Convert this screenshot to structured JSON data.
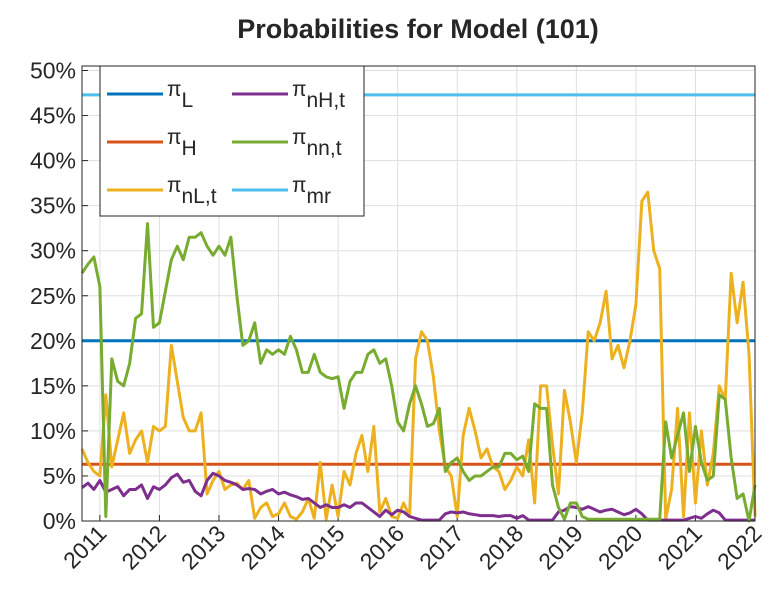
{
  "chart_data": {
    "type": "line",
    "title": "Probabilities for Model (101)",
    "x": [
      2010.7,
      2010.8,
      2010.9,
      2011.0,
      2011.1,
      2011.2,
      2011.3,
      2011.4,
      2011.5,
      2011.6,
      2011.7,
      2011.8,
      2011.9,
      2012.0,
      2012.1,
      2012.2,
      2012.3,
      2012.4,
      2012.5,
      2012.6,
      2012.7,
      2012.8,
      2012.9,
      2013.0,
      2013.1,
      2013.2,
      2013.3,
      2013.4,
      2013.5,
      2013.6,
      2013.7,
      2013.8,
      2013.9,
      2014.0,
      2014.1,
      2014.2,
      2014.3,
      2014.4,
      2014.5,
      2014.6,
      2014.7,
      2014.8,
      2014.9,
      2015.0,
      2015.1,
      2015.2,
      2015.3,
      2015.4,
      2015.5,
      2015.6,
      2015.7,
      2015.8,
      2015.9,
      2016.0,
      2016.1,
      2016.2,
      2016.3,
      2016.4,
      2016.5,
      2016.6,
      2016.7,
      2016.8,
      2016.9,
      2017.0,
      2017.1,
      2017.2,
      2017.3,
      2017.4,
      2017.5,
      2017.6,
      2017.7,
      2017.8,
      2017.9,
      2018.0,
      2018.1,
      2018.2,
      2018.3,
      2018.4,
      2018.5,
      2018.6,
      2018.7,
      2018.8,
      2018.9,
      2019.0,
      2019.1,
      2019.2,
      2019.3,
      2019.4,
      2019.5,
      2019.6,
      2019.7,
      2019.8,
      2019.9,
      2020.0,
      2020.1,
      2020.2,
      2020.3,
      2020.4,
      2020.5,
      2020.6,
      2020.7,
      2020.8,
      2020.9,
      2021.0,
      2021.1,
      2021.2,
      2021.3,
      2021.4,
      2021.5,
      2021.6,
      2021.7,
      2021.8,
      2021.9,
      2022.0
    ],
    "series": [
      {
        "name": "πL",
        "color": "#0072bd",
        "x": [
          2010.7,
          2022.0
        ],
        "values": [
          20,
          20
        ]
      },
      {
        "name": "πH",
        "color": "#d95319",
        "x": [
          2010.7,
          2022.0
        ],
        "values": [
          6.3,
          6.3
        ]
      },
      {
        "name": "πnL,t",
        "color": "#edb120",
        "values": [
          8,
          6.5,
          5.5,
          5,
          14,
          6,
          9,
          12,
          7.5,
          9,
          10,
          6.5,
          10.5,
          10,
          10.5,
          19.5,
          15.5,
          11.5,
          10,
          10,
          12,
          3,
          4.5,
          5.5,
          3.5,
          4,
          4.2,
          3.5,
          4.5,
          0.3,
          1.5,
          2,
          0.5,
          0.8,
          2,
          0.5,
          0.2,
          1,
          2.5,
          0.3,
          6.5,
          0.2,
          4,
          0.5,
          5.5,
          4,
          7.5,
          9.5,
          5.5,
          10.5,
          1,
          2.5,
          0.5,
          0.3,
          2,
          0.5,
          18,
          21,
          20,
          16,
          10,
          6,
          5,
          0.5,
          9.5,
          12.5,
          10,
          7,
          8,
          6,
          5.5,
          3.5,
          4.5,
          6,
          5,
          9,
          2,
          15,
          15,
          8.5,
          3,
          14.5,
          11,
          6.5,
          12,
          21,
          20,
          22,
          25.5,
          18,
          19.5,
          17,
          20,
          24,
          35.5,
          36.5,
          30,
          28,
          0.2,
          3.5,
          12.5,
          0.5,
          12,
          2,
          10,
          4,
          7.5,
          15,
          13.5,
          27.5,
          22,
          26.5,
          18.5,
          0.5
        ]
      },
      {
        "name": "πnH,t",
        "color": "#7e2f8e",
        "values": [
          3.7,
          4.2,
          3.5,
          4.5,
          3.2,
          3.5,
          3.8,
          2.8,
          3.5,
          3.5,
          4,
          2.5,
          3.8,
          3.5,
          4,
          4.8,
          5.2,
          4.3,
          4.5,
          3.3,
          2.8,
          4.5,
          5.3,
          5,
          4.5,
          4.3,
          4,
          3.5,
          3.6,
          3.5,
          3,
          3.3,
          3.5,
          3,
          3.2,
          2.9,
          2.7,
          2.4,
          2.5,
          2,
          1.5,
          1.8,
          1.5,
          1.5,
          1.8,
          1.5,
          2,
          2,
          1.5,
          1,
          0.5,
          1.2,
          0.7,
          1.2,
          1,
          0.5,
          0.3,
          0.1,
          0.1,
          0.1,
          0.1,
          0.8,
          1,
          0.9,
          1,
          0.8,
          0.7,
          0.6,
          0.6,
          0.6,
          0.5,
          0.6,
          0.6,
          0.3,
          0.6,
          0.1,
          0.1,
          0.1,
          0.1,
          0.1,
          1,
          1.2,
          1.6,
          1.5,
          1.3,
          1.6,
          1.3,
          1,
          1.2,
          1.3,
          1,
          0.7,
          0.9,
          1.3,
          0.8,
          0.1,
          0.1,
          0.1,
          0.1,
          0.1,
          0.1,
          0.1,
          0.3,
          0.5,
          0.3,
          0.8,
          1.2,
          0.9,
          0.1,
          0.1,
          0.1,
          0.1,
          0.1,
          0.1
        ]
      },
      {
        "name": "πnn,t",
        "color": "#77ac30",
        "values": [
          27.5,
          28.5,
          29.3,
          26,
          0.5,
          18,
          15.5,
          15,
          17.5,
          22.5,
          23,
          33,
          21.5,
          22,
          25.5,
          29,
          30.5,
          29,
          31.5,
          31.5,
          32,
          30.5,
          29.5,
          30.5,
          29.5,
          31.5,
          25,
          19.5,
          20,
          22,
          17.5,
          19,
          18.5,
          19,
          18.5,
          20.5,
          19,
          16.5,
          16.5,
          18.5,
          16.5,
          16,
          15.8,
          16,
          12.5,
          15.5,
          16.5,
          16.5,
          18.5,
          19,
          17.5,
          18,
          15,
          11,
          10,
          13,
          15,
          13,
          10.5,
          10.8,
          12.5,
          5.5,
          6.5,
          7,
          5.5,
          4.5,
          5,
          5,
          5.5,
          6,
          6,
          7.5,
          7.5,
          6.8,
          7.2,
          5.5,
          13,
          12.5,
          12.5,
          4,
          1.5,
          0.2,
          2,
          2,
          0.5,
          0.2,
          0.2,
          0.2,
          0.2,
          0.2,
          0.2,
          0.2,
          0.2,
          0.2,
          0.2,
          0.2,
          0.2,
          0.2,
          11,
          7,
          9.5,
          12,
          5.5,
          10.5,
          6.5,
          4.5,
          5,
          14,
          13.5,
          7,
          2.5,
          3,
          0,
          4
        ]
      },
      {
        "name": "πmr",
        "color": "#4dbeee",
        "x": [
          2010.7,
          2022.0
        ],
        "values": [
          47.3,
          47.3
        ]
      }
    ],
    "xlim": [
      2010.7,
      2022.0
    ],
    "xticks": [
      2011,
      2012,
      2013,
      2014,
      2015,
      2016,
      2017,
      2018,
      2019,
      2020,
      2021,
      2022
    ],
    "ylim": [
      0,
      50.5
    ],
    "yticks": [
      {
        "value": 0,
        "label": "0%"
      },
      {
        "value": 5,
        "label": "5%"
      },
      {
        "value": 10,
        "label": "10%"
      },
      {
        "value": 15,
        "label": "15%"
      },
      {
        "value": 20,
        "label": "20%"
      },
      {
        "value": 25,
        "label": "25%"
      },
      {
        "value": 30,
        "label": "30%"
      },
      {
        "value": 35,
        "label": "35%"
      },
      {
        "value": 40,
        "label": "40%"
      },
      {
        "value": 45,
        "label": "45%"
      },
      {
        "value": 50,
        "label": "50%"
      }
    ],
    "grid": true,
    "legend": "top-left"
  }
}
